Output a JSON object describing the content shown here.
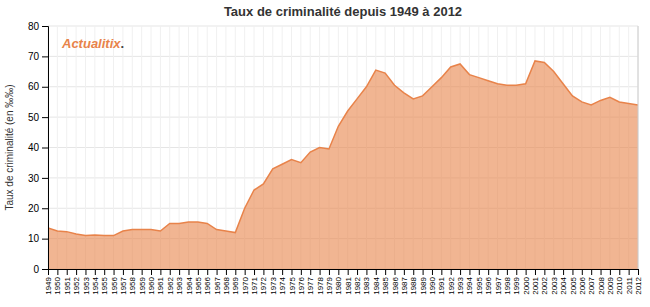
{
  "chart_data": {
    "type": "area",
    "title": "Taux de criminalité depuis 1949 à 2012",
    "y_label": "Taux de criminalité (en ‰‰)",
    "annotations": [
      "Actualitix",
      "."
    ],
    "x": [
      1949,
      1950,
      1951,
      1952,
      1953,
      1954,
      1955,
      1956,
      1957,
      1958,
      1959,
      1960,
      1961,
      1962,
      1963,
      1964,
      1965,
      1966,
      1967,
      1968,
      1969,
      1970,
      1971,
      1972,
      1973,
      1974,
      1975,
      1976,
      1977,
      1978,
      1979,
      1980,
      1981,
      1982,
      1983,
      1984,
      1985,
      1986,
      1987,
      1988,
      1989,
      1990,
      1991,
      1992,
      1993,
      1994,
      1995,
      1996,
      1997,
      1998,
      1999,
      2000,
      2001,
      2002,
      2003,
      2004,
      2005,
      2006,
      2007,
      2008,
      2009,
      2010,
      2011,
      2012
    ],
    "values": [
      13.5,
      12.5,
      12.3,
      11.5,
      11.0,
      11.2,
      11.0,
      11.0,
      12.5,
      13.0,
      13.0,
      13.0,
      12.5,
      15.0,
      15.0,
      15.5,
      15.5,
      15.0,
      13.0,
      12.5,
      12.0,
      20.0,
      26.0,
      28.0,
      33.0,
      34.5,
      36.0,
      35.0,
      38.5,
      40.0,
      39.5,
      47.0,
      52.0,
      56.0,
      60.0,
      65.5,
      64.5,
      60.5,
      58.0,
      56.0,
      57.0,
      60.0,
      63.0,
      66.5,
      67.5,
      64.0,
      63.0,
      62.0,
      61.0,
      60.5,
      60.5,
      61.0,
      68.5,
      68.0,
      65.0,
      61.0,
      57.0,
      55.0,
      54.0,
      55.5,
      56.5,
      55.0,
      54.5,
      54.0
    ],
    "color": "#E8834A",
    "xlim": [
      1949,
      2012
    ],
    "xticks": [
      1949,
      1950,
      1951,
      1952,
      1953,
      1954,
      1955,
      1956,
      1957,
      1958,
      1959,
      1960,
      1961,
      1962,
      1963,
      1964,
      1965,
      1966,
      1967,
      1968,
      1969,
      1970,
      1971,
      1972,
      1973,
      1974,
      1975,
      1976,
      1977,
      1978,
      1979,
      1980,
      1981,
      1982,
      1983,
      1984,
      1985,
      1986,
      1987,
      1988,
      1989,
      1990,
      1991,
      1992,
      1993,
      1994,
      1995,
      1996,
      1997,
      1998,
      1999,
      2000,
      2001,
      2002,
      2003,
      2004,
      2005,
      2006,
      2007,
      2008,
      2009,
      2010,
      2011,
      2012
    ],
    "ylim": [
      0,
      80
    ],
    "yticks": [
      0,
      10,
      20,
      30,
      40,
      50,
      60,
      70,
      80
    ],
    "grid": true
  }
}
